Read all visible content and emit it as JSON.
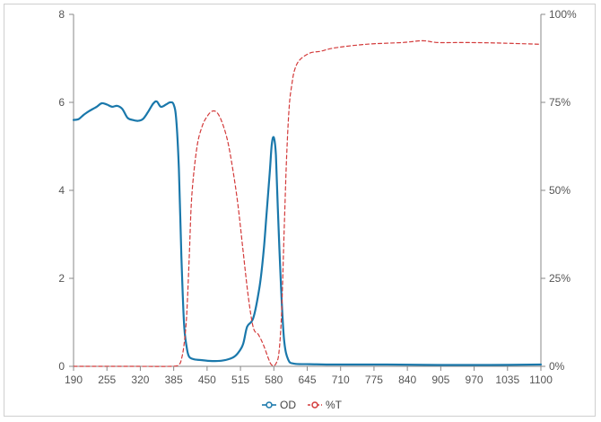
{
  "chart_data": {
    "type": "line",
    "title": "",
    "xlabel": "",
    "ylabel_left": "",
    "ylabel_right": "",
    "xlim": [
      190,
      1100
    ],
    "ylim_left": [
      0,
      8
    ],
    "ylim_right": [
      0,
      100
    ],
    "x_ticks": [
      "190",
      "255",
      "320",
      "385",
      "450",
      "515",
      "580",
      "645",
      "710",
      "775",
      "840",
      "905",
      "970",
      "1035",
      "1100"
    ],
    "y_left_ticks": [
      "0",
      "2",
      "4",
      "6",
      "8"
    ],
    "y_right_ticks": [
      "0%",
      "25%",
      "50%",
      "75%",
      "100%"
    ],
    "grid": false,
    "legend_position": "bottom-center",
    "series": [
      {
        "name": "OD",
        "axis": "left",
        "style": "solid",
        "color": "#1a78ab",
        "x": [
          190,
          200,
          210,
          220,
          235,
          245,
          255,
          265,
          275,
          285,
          295,
          305,
          315,
          325,
          335,
          345,
          352,
          360,
          370,
          378,
          385,
          390,
          395,
          400,
          405,
          410,
          415,
          425,
          440,
          460,
          480,
          500,
          510,
          520,
          528,
          540,
          552,
          560,
          566,
          572,
          576,
          580,
          584,
          588,
          594,
          600,
          608,
          620,
          650,
          700,
          800,
          900,
          1000,
          1100
        ],
        "y": [
          5.6,
          5.62,
          5.72,
          5.8,
          5.9,
          5.98,
          5.95,
          5.9,
          5.92,
          5.85,
          5.65,
          5.6,
          5.58,
          5.62,
          5.78,
          5.97,
          6.02,
          5.9,
          5.95,
          6.0,
          5.95,
          5.6,
          4.5,
          2.5,
          1.0,
          0.45,
          0.22,
          0.16,
          0.14,
          0.12,
          0.13,
          0.2,
          0.3,
          0.5,
          0.9,
          1.1,
          1.8,
          2.6,
          3.5,
          4.4,
          5.05,
          5.2,
          4.8,
          3.5,
          1.8,
          0.6,
          0.15,
          0.06,
          0.05,
          0.04,
          0.04,
          0.03,
          0.03,
          0.04
        ]
      },
      {
        "name": "%T",
        "axis": "right",
        "style": "dashed",
        "color": "#d33a3a",
        "x": [
          190,
          300,
          380,
          395,
          400,
          405,
          410,
          415,
          420,
          430,
          440,
          450,
          460,
          470,
          480,
          490,
          500,
          510,
          520,
          530,
          540,
          550,
          560,
          570,
          575,
          580,
          585,
          590,
          595,
          600,
          605,
          610,
          615,
          620,
          630,
          650,
          670,
          700,
          760,
          830,
          870,
          900,
          960,
          1030,
          1100
        ],
        "y": [
          0,
          0,
          0,
          0.5,
          2,
          6,
          14,
          30,
          48,
          62,
          68,
          71,
          72.5,
          72,
          69,
          64,
          56,
          46,
          33,
          20,
          11,
          9,
          6,
          2,
          0.5,
          0.2,
          1,
          4,
          15,
          38,
          60,
          74,
          80,
          84,
          87,
          89,
          89.5,
          90.5,
          91.5,
          92,
          92.5,
          92,
          92,
          91.8,
          91.5
        ]
      }
    ]
  }
}
